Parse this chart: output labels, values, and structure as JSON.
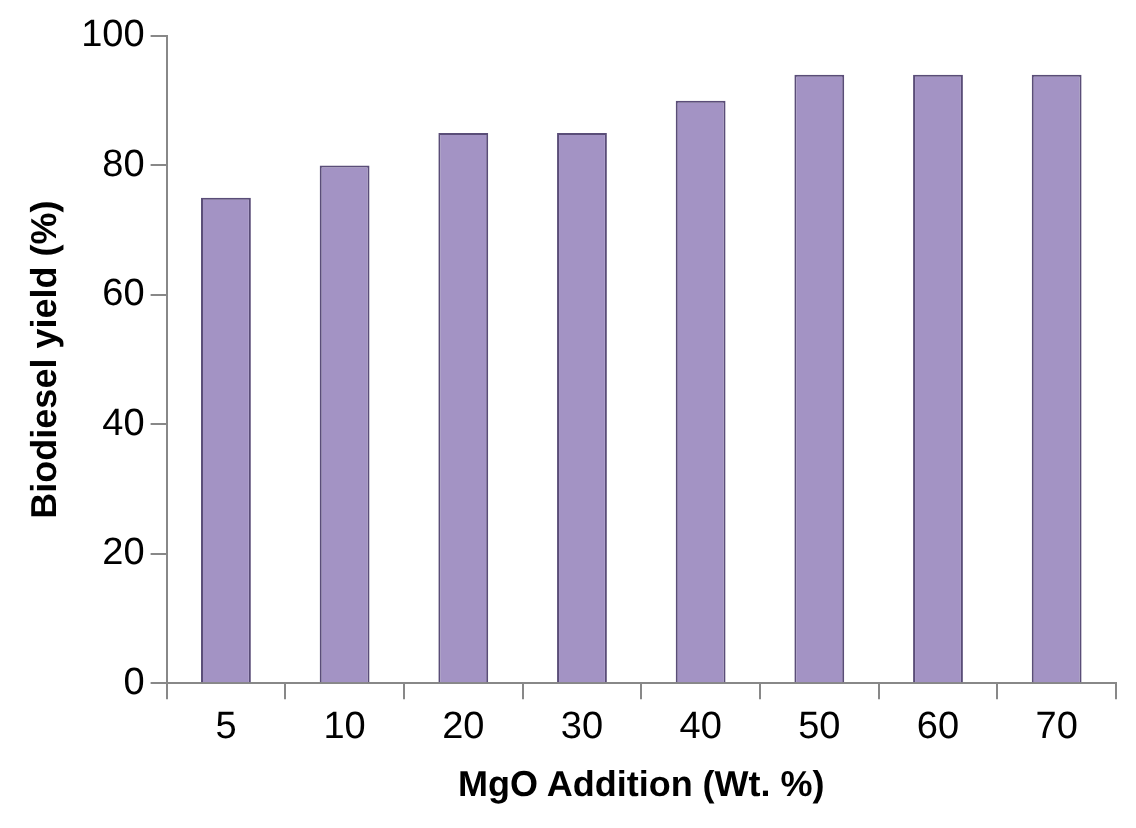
{
  "chart_data": {
    "type": "bar",
    "xlabel": "MgO Addition (Wt. %)",
    "ylabel": "Biodiesel yield (%)",
    "categories": [
      "5",
      "10",
      "20",
      "30",
      "40",
      "50",
      "60",
      "70"
    ],
    "values": [
      75,
      80,
      85,
      85,
      90,
      94,
      94,
      94
    ],
    "color": "#a393c4",
    "ylim": [
      0,
      100
    ],
    "yticks": [
      0,
      20,
      40,
      60,
      80,
      100
    ],
    "grid": false,
    "legend": false
  }
}
